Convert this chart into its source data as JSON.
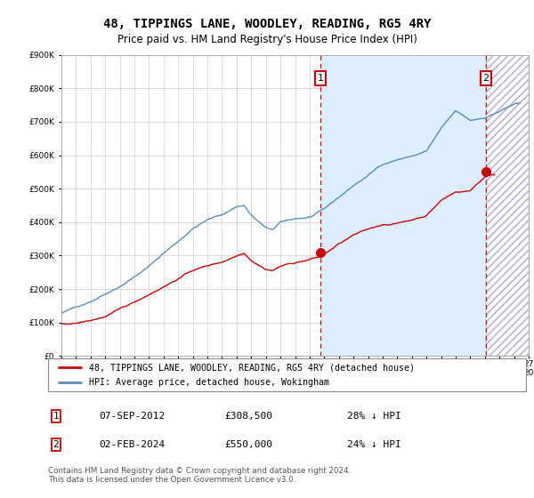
{
  "title": "48, TIPPINGS LANE, WOODLEY, READING, RG5 4RY",
  "subtitle": "Price paid vs. HM Land Registry's House Price Index (HPI)",
  "legend_line1": "48, TIPPINGS LANE, WOODLEY, READING, RG5 4RY (detached house)",
  "legend_line2": "HPI: Average price, detached house, Wokingham",
  "sale1_label": "1",
  "sale1_date": "07-SEP-2012",
  "sale1_price": "£308,500",
  "sale1_hpi": "28% ↓ HPI",
  "sale2_label": "2",
  "sale2_date": "02-FEB-2024",
  "sale2_price": "£550,000",
  "sale2_hpi": "24% ↓ HPI",
  "footer": "Contains HM Land Registry data © Crown copyright and database right 2024.\nThis data is licensed under the Open Government Licence v3.0.",
  "red_color": "#cc0000",
  "blue_color": "#5b8db8",
  "blue_fill": "#ddeeff",
  "hatch_fill": "#e8e8f0",
  "plot_bg": "#ffffff",
  "ylim": [
    0,
    900000
  ],
  "xlim_start": 1995,
  "xlim_end": 2027,
  "sale1_year": 2012.75,
  "sale1_value": 308500,
  "sale2_year": 2024.08,
  "sale2_value": 550000
}
